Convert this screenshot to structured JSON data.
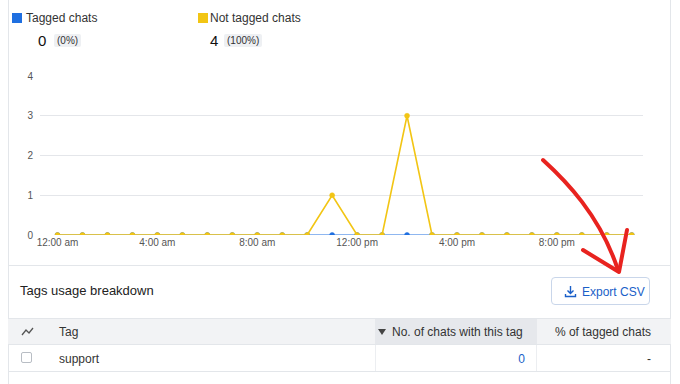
{
  "summary": [
    {
      "count": 0,
      "share": "(0%)"
    },
    {
      "count": 4,
      "share": "(100%)"
    }
  ],
  "chart_data": {
    "type": "line",
    "categories": [
      "12:00 am",
      null,
      null,
      null,
      "4:00 am",
      null,
      null,
      null,
      "8:00 am",
      null,
      null,
      null,
      "12:00 pm",
      null,
      null,
      null,
      "4:00 pm",
      null,
      null,
      null,
      "8:00 pm",
      null,
      null,
      null
    ],
    "series": [
      {
        "name": "Tagged chats",
        "color": "#1f6fe0",
        "values": [
          0,
          0,
          0,
          0,
          0,
          0,
          0,
          0,
          0,
          0,
          0,
          0,
          0,
          0,
          0,
          0,
          0,
          0,
          0,
          0,
          0,
          0,
          0,
          0
        ]
      },
      {
        "name": "Not tagged chats",
        "color": "#f2c514",
        "values": [
          0,
          0,
          0,
          0,
          0,
          0,
          0,
          0,
          0,
          0,
          0,
          1,
          0,
          0,
          3,
          0,
          0,
          0,
          0,
          0,
          0,
          0,
          0,
          0
        ]
      }
    ],
    "ylim": [
      0,
      4
    ],
    "yticks": [
      0,
      1,
      2,
      3,
      4
    ],
    "grid": true,
    "marker": "circle"
  },
  "breakdown": {
    "title": "Tags usage breakdown",
    "button": "Export CSV",
    "table": {
      "columns": [
        "Tag",
        "No. of chats with this tag",
        "% of tagged chats"
      ],
      "rows": [
        [
          "support",
          0,
          "-"
        ]
      ]
    }
  }
}
